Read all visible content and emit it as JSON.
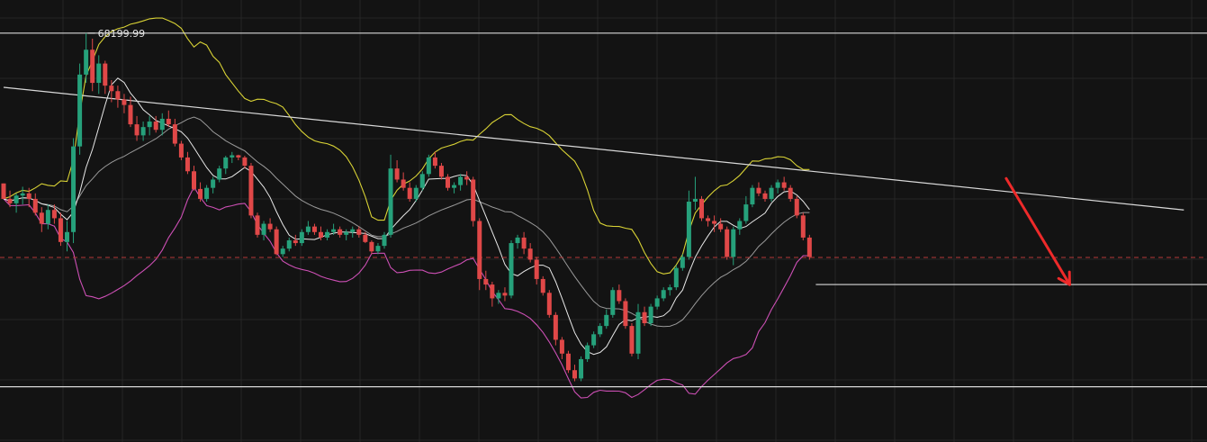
{
  "chart_data": {
    "type": "candlestick",
    "title": "",
    "xlabel": "",
    "ylabel": "",
    "ylim": [
      60800,
      68800
    ],
    "grid": true,
    "high_marker_label": "68199.99",
    "colors": {
      "background": "#131313",
      "grid": "#262626",
      "up": "#26a17b",
      "down": "#e04848",
      "bb_upper": "#d8d235",
      "bb_lower": "#cc4fb4",
      "ma_fast": "#e8e8e8",
      "ma_slow": "#9a9a9a",
      "levels": "#d9d9d9",
      "arrow": "#ee2a2a",
      "current_price": "#b53a3a"
    },
    "horizontal_levels": [
      68200,
      61800,
      63650
    ],
    "current_price": 64140,
    "trendline": [
      {
        "bar": 0,
        "price": 67220
      },
      {
        "bar": 186,
        "price": 65000
      }
    ],
    "arrow": {
      "from": {
        "bar": 158,
        "price": 65570
      },
      "to": {
        "bar": 168,
        "price": 63650
      }
    },
    "candles": [
      [
        65480,
        65480,
        65200,
        65200
      ],
      [
        65200,
        65350,
        65050,
        65120
      ],
      [
        65120,
        65300,
        64950,
        65260
      ],
      [
        65260,
        65420,
        65100,
        65300
      ],
      [
        65300,
        65400,
        65050,
        65200
      ],
      [
        65200,
        65300,
        64900,
        64950
      ],
      [
        64950,
        65050,
        64600,
        64750
      ],
      [
        64750,
        65100,
        64650,
        65000
      ],
      [
        65000,
        65100,
        64750,
        64850
      ],
      [
        64850,
        64950,
        64350,
        64420
      ],
      [
        64420,
        64800,
        64250,
        64600
      ],
      [
        64600,
        66300,
        64400,
        66150
      ],
      [
        66150,
        67650,
        66000,
        67450
      ],
      [
        67450,
        68200,
        67300,
        67900
      ],
      [
        67900,
        68100,
        67150,
        67300
      ],
      [
        67300,
        67800,
        67100,
        67650
      ],
      [
        67650,
        67700,
        67100,
        67250
      ],
      [
        67250,
        67350,
        66950,
        67150
      ],
      [
        67150,
        67250,
        66850,
        67000
      ],
      [
        67000,
        67100,
        66750,
        66900
      ],
      [
        66900,
        67050,
        66500,
        66550
      ],
      [
        66550,
        66700,
        66250,
        66350
      ],
      [
        66350,
        66600,
        66250,
        66500
      ],
      [
        66500,
        66700,
        66350,
        66600
      ],
      [
        66600,
        66700,
        66400,
        66450
      ],
      [
        66450,
        66750,
        66350,
        66650
      ],
      [
        66650,
        66800,
        66500,
        66550
      ],
      [
        66550,
        66650,
        66150,
        66200
      ],
      [
        66200,
        66250,
        65900,
        65950
      ],
      [
        65950,
        66050,
        65650,
        65700
      ],
      [
        65700,
        65800,
        65350,
        65380
      ],
      [
        65380,
        65500,
        65150,
        65200
      ],
      [
        65200,
        65450,
        65150,
        65400
      ],
      [
        65400,
        65600,
        65300,
        65550
      ],
      [
        65550,
        65800,
        65500,
        65750
      ],
      [
        65750,
        65980,
        65650,
        65950
      ],
      [
        65950,
        66050,
        65850,
        65990
      ],
      [
        65990,
        66000,
        65900,
        65950
      ],
      [
        65950,
        65980,
        65750,
        65800
      ],
      [
        65800,
        65850,
        64850,
        64900
      ],
      [
        64900,
        64950,
        64500,
        64550
      ],
      [
        64550,
        64800,
        64450,
        64750
      ],
      [
        64750,
        64850,
        64600,
        64650
      ],
      [
        64650,
        64700,
        64180,
        64200
      ],
      [
        64200,
        64350,
        64150,
        64300
      ],
      [
        64300,
        64500,
        64250,
        64450
      ],
      [
        64450,
        64550,
        64350,
        64400
      ],
      [
        64400,
        64650,
        64350,
        64600
      ],
      [
        64600,
        64800,
        64550,
        64700
      ],
      [
        64700,
        64750,
        64550,
        64600
      ],
      [
        64600,
        64700,
        64450,
        64500
      ],
      [
        64500,
        64650,
        64450,
        64600
      ],
      [
        64600,
        64750,
        64550,
        64650
      ],
      [
        64650,
        64700,
        64500,
        64550
      ],
      [
        64550,
        64650,
        64450,
        64600
      ],
      [
        64600,
        64700,
        64500,
        64650
      ],
      [
        64650,
        64700,
        64500,
        64550
      ],
      [
        64550,
        64600,
        64400,
        64420
      ],
      [
        64420,
        64450,
        64200,
        64250
      ],
      [
        64250,
        64400,
        64200,
        64350
      ],
      [
        64350,
        64600,
        64300,
        64550
      ],
      [
        64550,
        66000,
        64500,
        65750
      ],
      [
        65750,
        65900,
        65500,
        65550
      ],
      [
        65550,
        65680,
        65350,
        65400
      ],
      [
        65400,
        65500,
        65150,
        65200
      ],
      [
        65200,
        65450,
        65150,
        65400
      ],
      [
        65400,
        65700,
        65350,
        65650
      ],
      [
        65650,
        66000,
        65600,
        65950
      ],
      [
        65950,
        66050,
        65750,
        65800
      ],
      [
        65800,
        65850,
        65550,
        65600
      ],
      [
        65600,
        65650,
        65350,
        65400
      ],
      [
        65400,
        65500,
        65300,
        65450
      ],
      [
        65450,
        65650,
        65350,
        65600
      ],
      [
        65600,
        65700,
        65450,
        65550
      ],
      [
        65550,
        65600,
        64700,
        64800
      ],
      [
        64800,
        64850,
        63550,
        63750
      ],
      [
        63750,
        63900,
        63550,
        63650
      ],
      [
        63650,
        63700,
        63250,
        63400
      ],
      [
        63400,
        63550,
        63300,
        63500
      ],
      [
        63500,
        63600,
        63350,
        63450
      ],
      [
        63450,
        64450,
        63400,
        64400
      ],
      [
        64400,
        64550,
        64300,
        64500
      ],
      [
        64500,
        64600,
        64200,
        64300
      ],
      [
        64300,
        64400,
        64050,
        64100
      ],
      [
        64100,
        64150,
        63650,
        63750
      ],
      [
        63750,
        63800,
        63450,
        63500
      ],
      [
        63500,
        63550,
        63050,
        63100
      ],
      [
        63100,
        63150,
        62550,
        62650
      ],
      [
        62650,
        62700,
        62300,
        62400
      ],
      [
        62400,
        62450,
        62050,
        62100
      ],
      [
        62100,
        62200,
        61900,
        61950
      ],
      [
        61950,
        62350,
        61900,
        62300
      ],
      [
        62300,
        62600,
        62250,
        62550
      ],
      [
        62550,
        62800,
        62500,
        62750
      ],
      [
        62750,
        62950,
        62700,
        62900
      ],
      [
        62900,
        63200,
        62850,
        63100
      ],
      [
        63100,
        63600,
        63050,
        63550
      ],
      [
        63550,
        63650,
        63300,
        63350
      ],
      [
        63350,
        63400,
        62850,
        62900
      ],
      [
        62900,
        62950,
        62350,
        62400
      ],
      [
        62400,
        63300,
        62300,
        63150
      ],
      [
        63150,
        63250,
        62900,
        62950
      ],
      [
        62950,
        63300,
        62900,
        63250
      ],
      [
        63250,
        63450,
        63200,
        63400
      ],
      [
        63400,
        63600,
        63350,
        63550
      ],
      [
        63550,
        63650,
        63450,
        63600
      ],
      [
        63600,
        64000,
        63550,
        63950
      ],
      [
        63950,
        64200,
        63900,
        64150
      ],
      [
        64150,
        65350,
        64100,
        65150
      ],
      [
        65150,
        65600,
        65000,
        65200
      ],
      [
        65200,
        65250,
        64800,
        64850
      ],
      [
        64850,
        64900,
        64700,
        64800
      ],
      [
        64800,
        64900,
        64600,
        64750
      ],
      [
        64750,
        64850,
        64600,
        64650
      ],
      [
        64650,
        64700,
        64100,
        64150
      ],
      [
        64150,
        64700,
        64000,
        64650
      ],
      [
        64650,
        64850,
        64550,
        64800
      ],
      [
        64800,
        65250,
        64750,
        65100
      ],
      [
        65100,
        65450,
        65050,
        65400
      ],
      [
        65400,
        65500,
        65250,
        65300
      ],
      [
        65300,
        65350,
        65150,
        65200
      ],
      [
        65200,
        65450,
        65150,
        65400
      ],
      [
        65400,
        65550,
        65300,
        65500
      ],
      [
        65500,
        65600,
        65350,
        65400
      ],
      [
        65400,
        65450,
        65150,
        65200
      ],
      [
        65200,
        65250,
        64850,
        64900
      ],
      [
        64900,
        64950,
        64450,
        64500
      ],
      [
        64500,
        64550,
        64100,
        64150
      ]
    ]
  }
}
